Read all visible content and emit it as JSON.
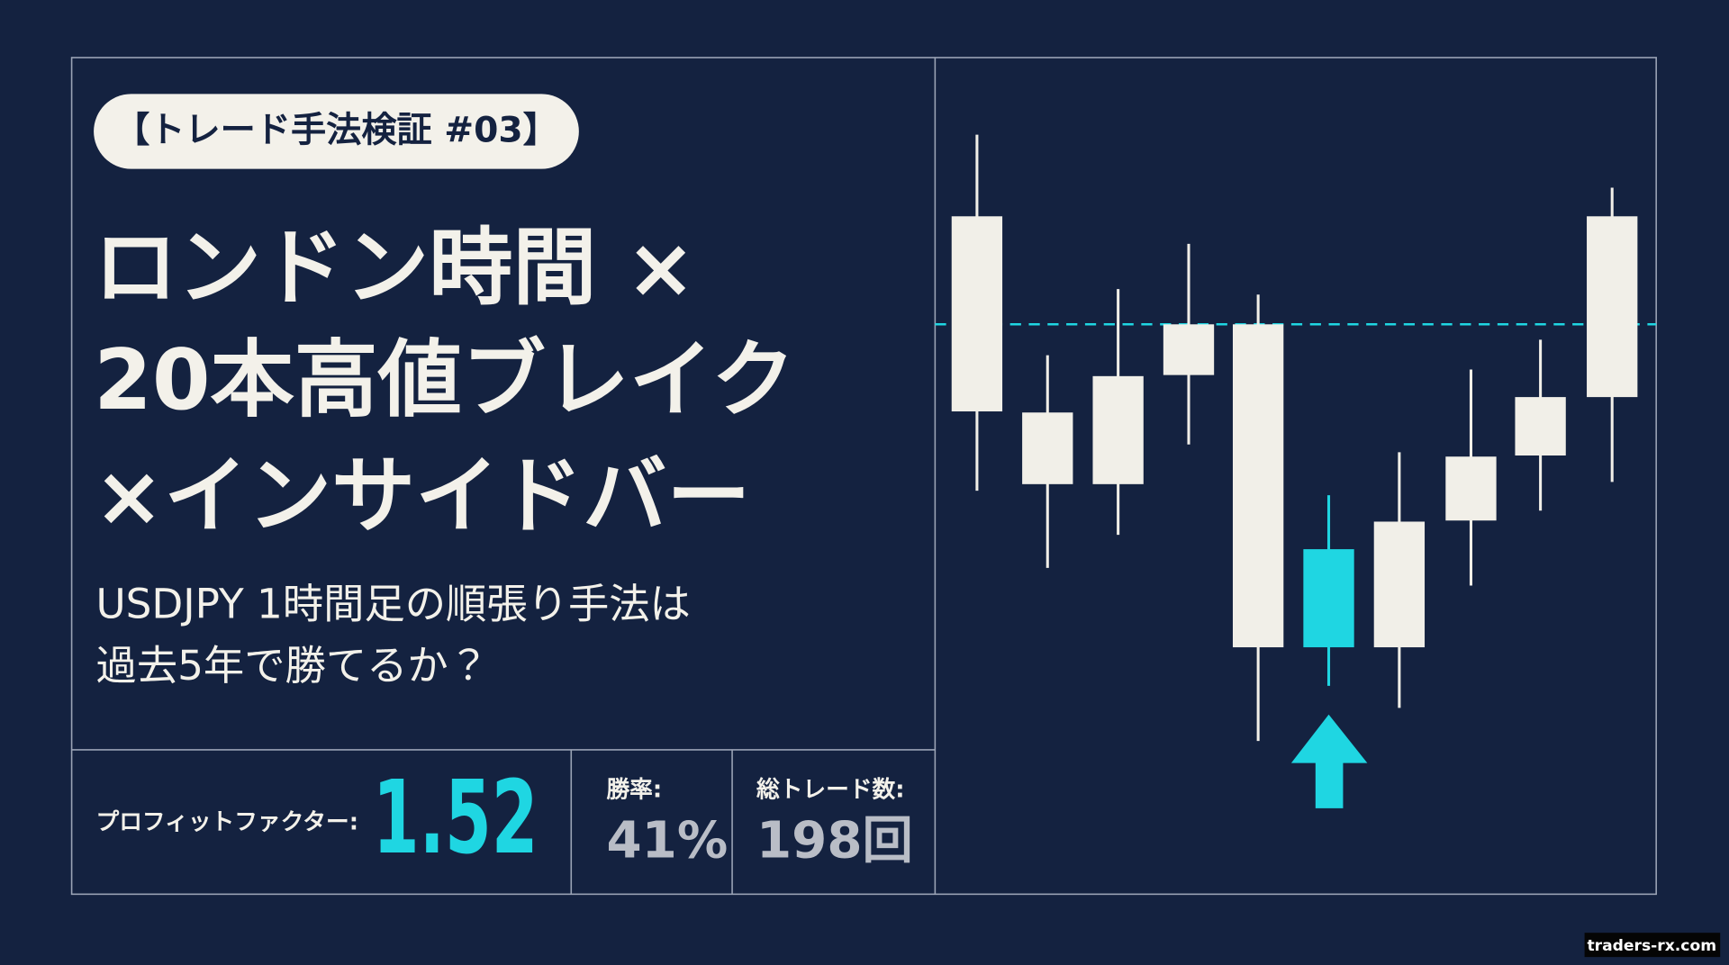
{
  "badge": "【トレード手法検証 #03】",
  "title": [
    "ロンドン時間 ×",
    "20本高値ブレイク",
    "×インサイドバー"
  ],
  "subtitle": [
    "USDJPY 1時間足の順張り手法は",
    "過去5年で勝てるか？"
  ],
  "stats": [
    {
      "label": "プロフィットファクター:",
      "value": "1.52"
    },
    {
      "label": "勝率:",
      "value": "41%"
    },
    {
      "label": "総トレード数:",
      "value": "198回"
    }
  ],
  "watermark": "traders-rx.com"
}
